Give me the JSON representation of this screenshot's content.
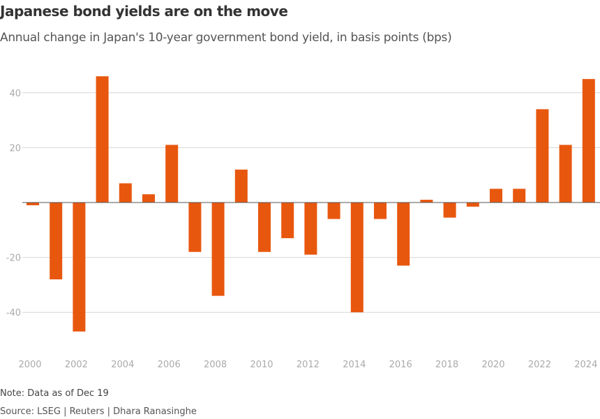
{
  "chart_data": {
    "type": "bar",
    "title": "Japanese bond yields are on the move",
    "subtitle": "Annual change in Japan's 10-year government bond yield, in basis points (bps)",
    "categories": [
      "2000",
      "2001",
      "2002",
      "2003",
      "2004",
      "2005",
      "2006",
      "2007",
      "2008",
      "2009",
      "2010",
      "2011",
      "2012",
      "2013",
      "2014",
      "2015",
      "2016",
      "2017",
      "2018",
      "2019",
      "2020",
      "2021",
      "2022",
      "2023",
      "2024"
    ],
    "values": [
      -1,
      -28,
      -47,
      46,
      7,
      3,
      21,
      -18,
      -34,
      12,
      -18,
      -13,
      -19,
      -6,
      -40,
      -6,
      -23,
      1,
      -5.5,
      -1.5,
      5,
      5,
      34,
      21,
      45
    ],
    "x_tick_labels": [
      "2000",
      "2002",
      "2004",
      "2006",
      "2008",
      "2010",
      "2012",
      "2014",
      "2016",
      "2018",
      "2020",
      "2022",
      "2024"
    ],
    "y_ticks": [
      40,
      20,
      -20,
      -40
    ],
    "y_tick_labels": [
      "40",
      "20",
      "-20",
      "-40"
    ],
    "ylim": [
      -52,
      52
    ],
    "grid": true,
    "bar_color": "#e8570e",
    "note": "Note: Data as of Dec 19",
    "source": "Source: LSEG | Reuters | Dhara Ranasinghe"
  }
}
